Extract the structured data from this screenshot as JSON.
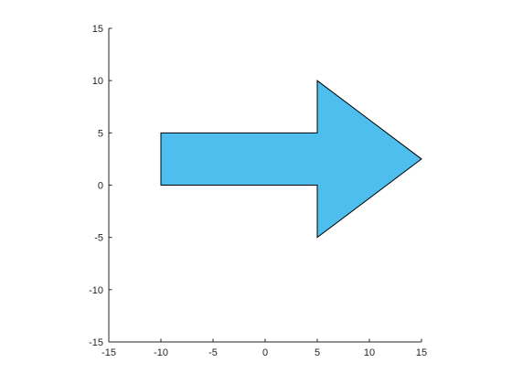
{
  "chart_data": {
    "type": "area",
    "title": "",
    "xlabel": "",
    "ylabel": "",
    "xlim": [
      -15,
      15
    ],
    "ylim": [
      -15,
      15
    ],
    "x_ticks": [
      -15,
      -10,
      -5,
      0,
      5,
      10,
      15
    ],
    "y_ticks": [
      -15,
      -10,
      -5,
      0,
      5,
      10,
      15
    ],
    "x_tick_labels": [
      "-15",
      "-10",
      "-5",
      "0",
      "5",
      "10",
      "15"
    ],
    "y_tick_labels": [
      "-15",
      "-10",
      "-5",
      "0",
      "5",
      "10",
      "15"
    ],
    "grid": false,
    "box": false,
    "aspect": "equal",
    "series": [
      {
        "shape": "arrow-polygon",
        "fill_color": "#4DBEEE",
        "edge_color": "#000000",
        "vertices": [
          [
            -10,
            0
          ],
          [
            -10,
            5
          ],
          [
            5,
            5
          ],
          [
            5,
            10
          ],
          [
            15,
            2.5
          ],
          [
            5,
            -5
          ],
          [
            5,
            0
          ],
          [
            -10,
            0
          ]
        ]
      }
    ]
  }
}
